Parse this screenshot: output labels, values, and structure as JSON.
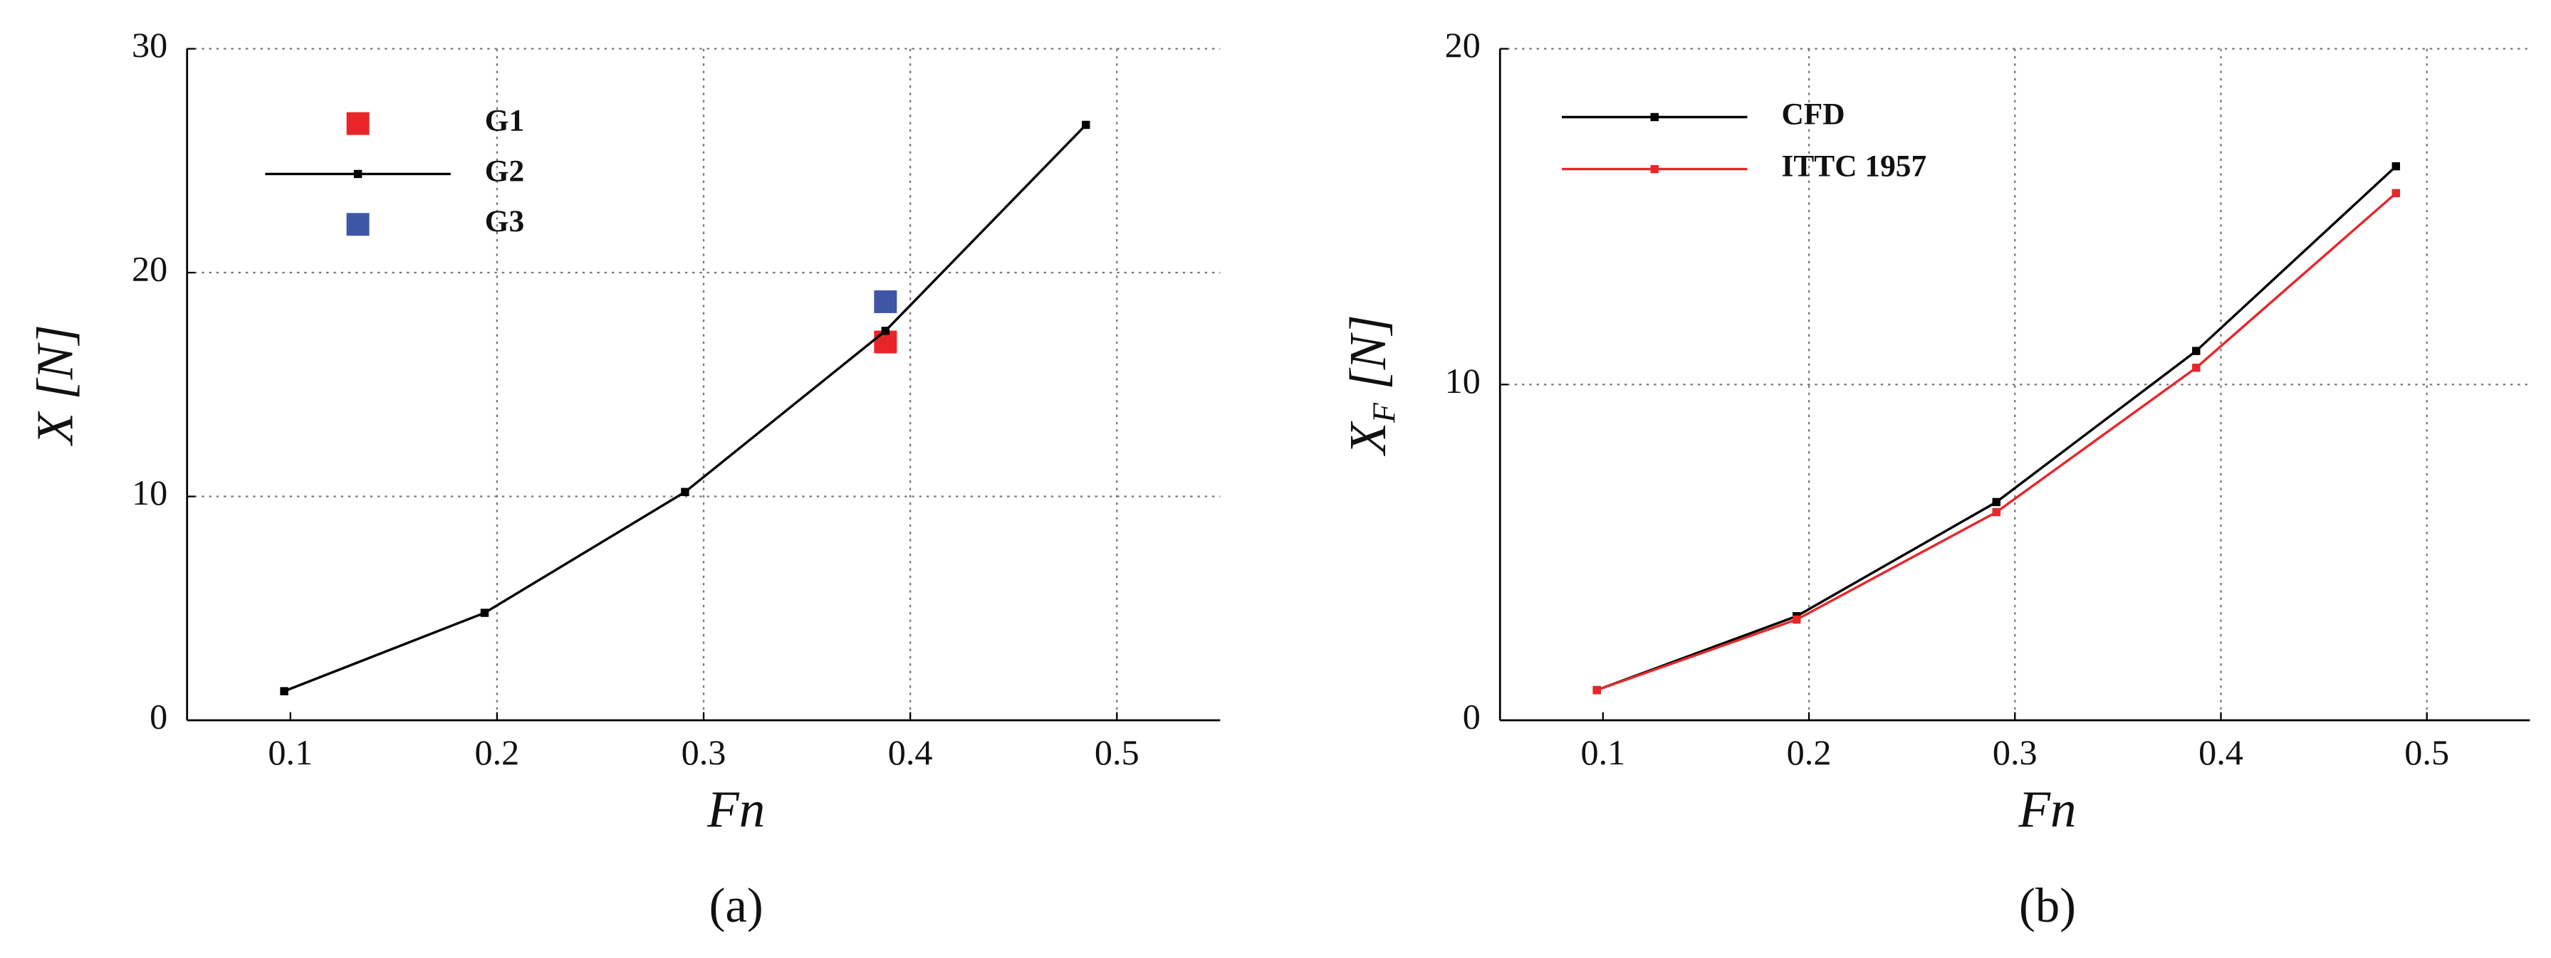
{
  "chart_data": [
    {
      "type": "line",
      "caption": "(a)",
      "xlabel": "Fn",
      "ylabel": {
        "main": "X",
        "unit": "[N]"
      },
      "xlim": [
        0.05,
        0.55
      ],
      "ylim": [
        0,
        30
      ],
      "xticks": [
        0.1,
        0.2,
        0.3,
        0.4,
        0.5
      ],
      "yticks": [
        0,
        10,
        20,
        30
      ],
      "grid": true,
      "series": [
        {
          "name": "G1",
          "color": "#e8262a",
          "style": "marker",
          "x": [
            0.388
          ],
          "values": [
            16.9
          ]
        },
        {
          "name": "G2",
          "color": "#000000",
          "style": "line",
          "x": [
            0.097,
            0.194,
            0.291,
            0.388,
            0.485
          ],
          "values": [
            1.3,
            4.8,
            10.2,
            17.4,
            26.6
          ]
        },
        {
          "name": "G3",
          "color": "#3f56a6",
          "style": "marker",
          "x": [
            0.388
          ],
          "values": [
            18.7
          ]
        }
      ]
    },
    {
      "type": "line",
      "caption": "(b)",
      "xlabel": "Fn",
      "ylabel": {
        "main": "X",
        "sub": "F",
        "unit": "[N]"
      },
      "xlim": [
        0.05,
        0.55
      ],
      "ylim": [
        0,
        20
      ],
      "xticks": [
        0.1,
        0.2,
        0.3,
        0.4,
        0.5
      ],
      "yticks": [
        0,
        10,
        20
      ],
      "grid": true,
      "series": [
        {
          "name": "CFD",
          "color": "#000000",
          "style": "line",
          "x": [
            0.097,
            0.194,
            0.291,
            0.388,
            0.485
          ],
          "values": [
            0.9,
            3.1,
            6.5,
            11.0,
            16.5
          ]
        },
        {
          "name": "ITTC 1957",
          "color": "#e8262a",
          "style": "line",
          "x": [
            0.097,
            0.194,
            0.291,
            0.388,
            0.485
          ],
          "values": [
            0.9,
            3.0,
            6.2,
            10.5,
            15.7
          ]
        }
      ]
    }
  ]
}
